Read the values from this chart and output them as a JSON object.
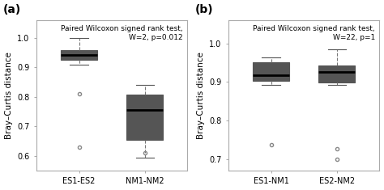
{
  "panel_a": {
    "label": "(a)",
    "annotation": "Paired Wilcoxon signed rank test,\nW=2, p=0.012",
    "ylabel": "Bray–Curtis distance",
    "xlabels": [
      "ES1-ES2",
      "NM1-NM2"
    ],
    "ylim": [
      0.55,
      1.06
    ],
    "yticks": [
      0.6,
      0.7,
      0.8,
      0.9,
      1.0
    ],
    "boxes": [
      {
        "whislo": 0.91,
        "q1": 0.925,
        "med": 0.943,
        "q3": 0.958,
        "whishi": 0.999,
        "fliers": [
          0.81,
          0.63
        ]
      },
      {
        "whislo": 0.595,
        "q1": 0.655,
        "med": 0.755,
        "q3": 0.808,
        "whishi": 0.842,
        "fliers": [
          0.61
        ]
      }
    ]
  },
  "panel_b": {
    "label": "(b)",
    "annotation": "Paired Wilcoxon signed rank test,\nW=22, p=1",
    "ylabel": "Bray–Curtis distance",
    "xlabels": [
      "ES1-NM1",
      "ES2-NM2"
    ],
    "ylim": [
      0.67,
      1.06
    ],
    "yticks": [
      0.7,
      0.8,
      0.9,
      1.0
    ],
    "boxes": [
      {
        "whislo": 0.893,
        "q1": 0.903,
        "med": 0.918,
        "q3": 0.95,
        "whishi": 0.963,
        "fliers": [
          0.737
        ]
      },
      {
        "whislo": 0.893,
        "q1": 0.898,
        "med": 0.925,
        "q3": 0.942,
        "whishi": 0.985,
        "fliers": [
          0.726,
          0.7
        ]
      }
    ]
  },
  "median_color": "black",
  "flier_color": "#888888",
  "background_color": "white",
  "annotation_fontsize": 6.5,
  "label_fontsize": 10,
  "tick_fontsize": 7,
  "ylabel_fontsize": 7.5
}
